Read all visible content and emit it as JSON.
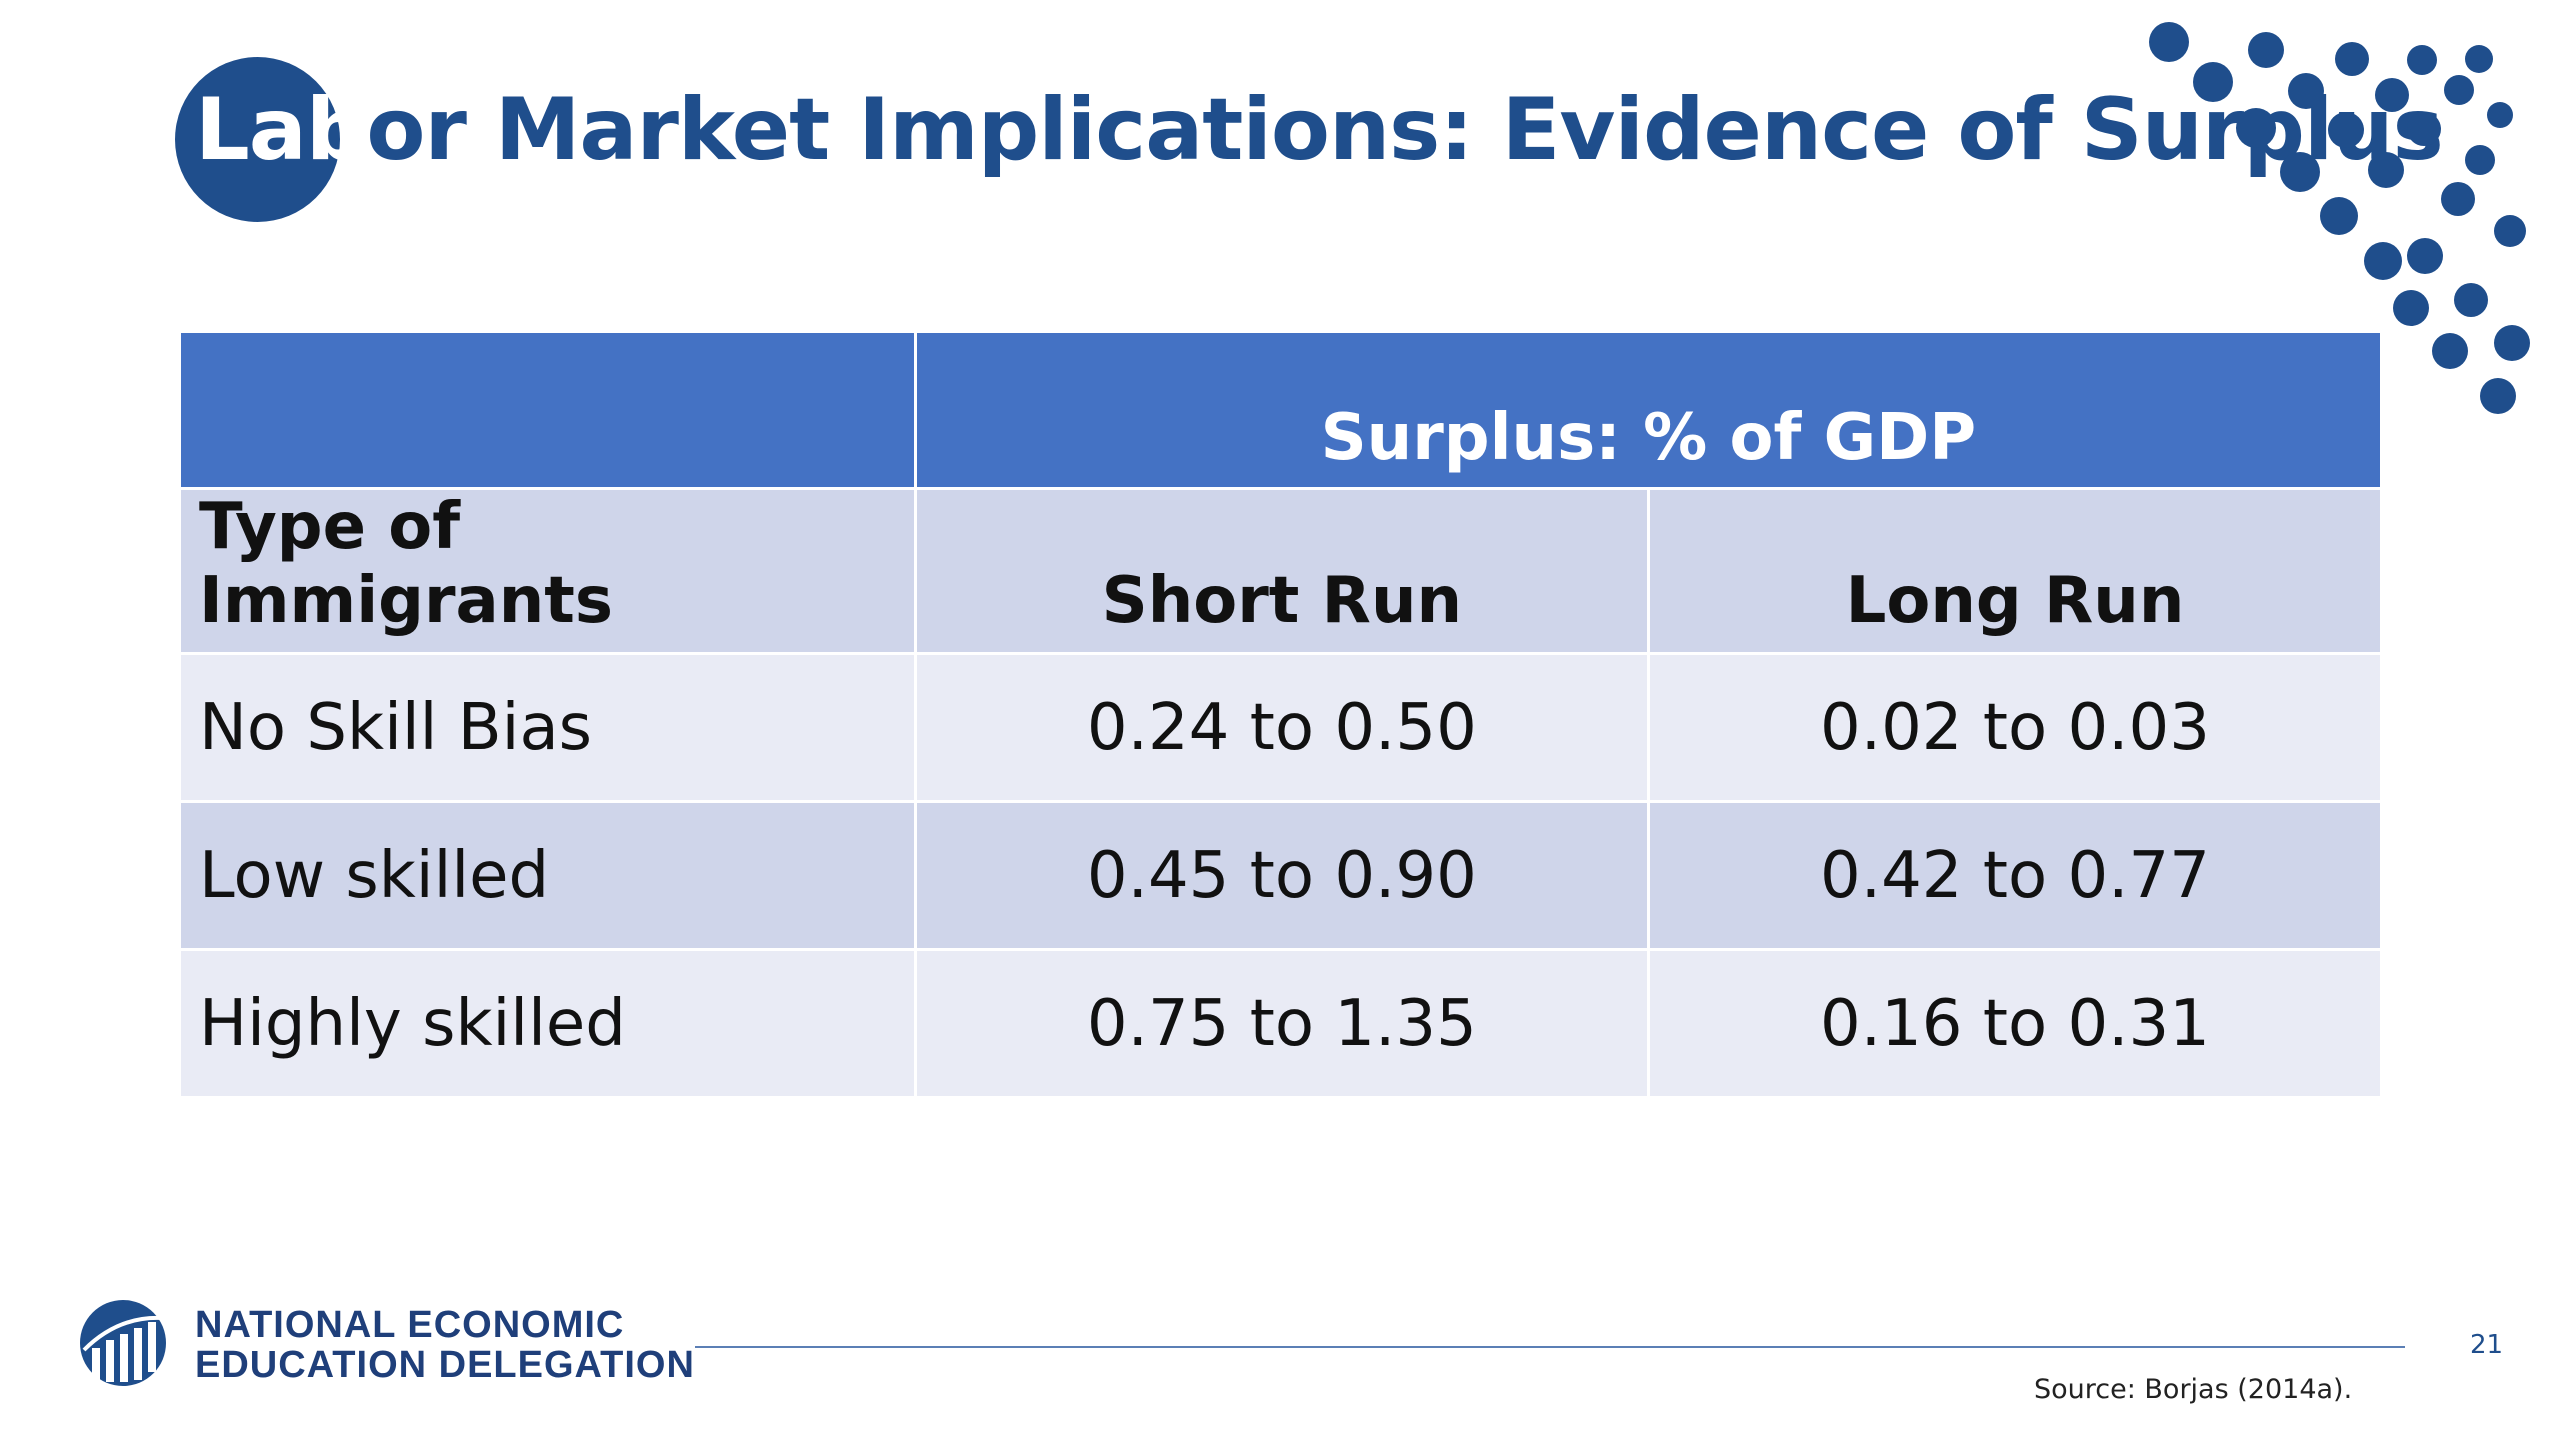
{
  "slide": {
    "title_highlight": "Lab",
    "title_rest": "or Market Implications: Evidence of Surplus"
  },
  "table": {
    "group_header": "Surplus: % of GDP",
    "headers": [
      "Type of Immigrants",
      "Short Run",
      "Long Run"
    ],
    "rows": [
      [
        "No Skill Bias",
        "0.24 to 0.50",
        "0.02 to 0.03"
      ],
      [
        "Low skilled",
        "0.45 to 0.90",
        "0.42 to 0.77"
      ],
      [
        "Highly skilled",
        "0.75 to 1.35",
        "0.16 to 0.31"
      ]
    ]
  },
  "footer": {
    "org_line1": "NATIONAL ECONOMIC",
    "org_line2": "EDUCATION DELEGATION",
    "page_number": "21",
    "source": "Source: Borjas (2014a)."
  },
  "colors": {
    "brand": "#1f4e8c",
    "header_blue": "#4472c4",
    "band_dark": "#cfd5ea",
    "band_light": "#e9ebf5"
  },
  "icons": {
    "logo": "need-logo-icon",
    "decoration": "dot-pattern-icon"
  }
}
